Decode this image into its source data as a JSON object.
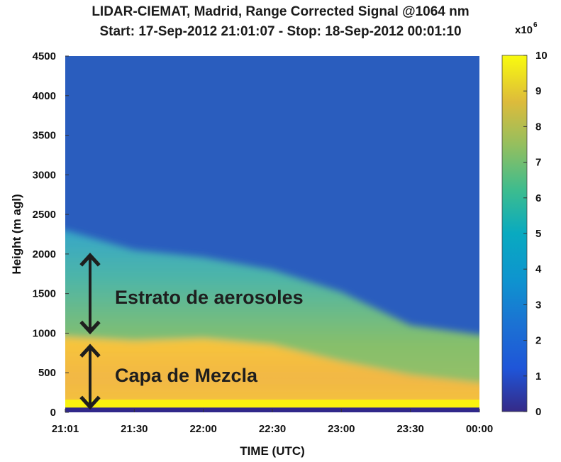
{
  "chart_data": {
    "type": "heatmap",
    "title": "LIDAR-CIEMAT, Madrid, Range Corrected Signal @1064 nm",
    "subtitle": "Start: 17-Sep-2012 21:01:07 - Stop: 18-Sep-2012 00:01:10",
    "xlabel": "TIME (UTC)",
    "ylabel": "Height (m agl)",
    "x_ticks": [
      "21:01",
      "21:30",
      "22:00",
      "22:30",
      "23:00",
      "23:30",
      "00:00"
    ],
    "y_ticks": [
      0,
      500,
      1000,
      1500,
      2000,
      2500,
      3000,
      3500,
      4000,
      4500
    ],
    "ylim": [
      0,
      4500
    ],
    "colorbar": {
      "ticks": [
        0,
        1,
        2,
        3,
        4,
        5,
        6,
        7,
        8,
        9,
        10
      ],
      "range": [
        0,
        10
      ],
      "exponent_label": "x10",
      "exponent": "6",
      "colormap": "parula"
    },
    "layers": {
      "time_minutes": [
        0,
        30,
        60,
        90,
        120,
        150,
        180
      ],
      "mixing_layer_top_m": [
        950,
        900,
        930,
        850,
        640,
        470,
        370
      ],
      "aerosol_stratum_top_m": [
        2300,
        2050,
        1960,
        1800,
        1520,
        1100,
        980
      ],
      "values_x1e6": {
        "surface_0_100m": 0.4,
        "mixing_layer": 8.3,
        "aerosol_stratum": 5.6,
        "free_troposphere": 1.3
      }
    },
    "annotations": [
      {
        "text": "Estrato de aerosoles",
        "height_range_m": [
          1000,
          2000
        ]
      },
      {
        "text": "Capa de Mezcla",
        "height_range_m": [
          50,
          850
        ]
      }
    ]
  }
}
